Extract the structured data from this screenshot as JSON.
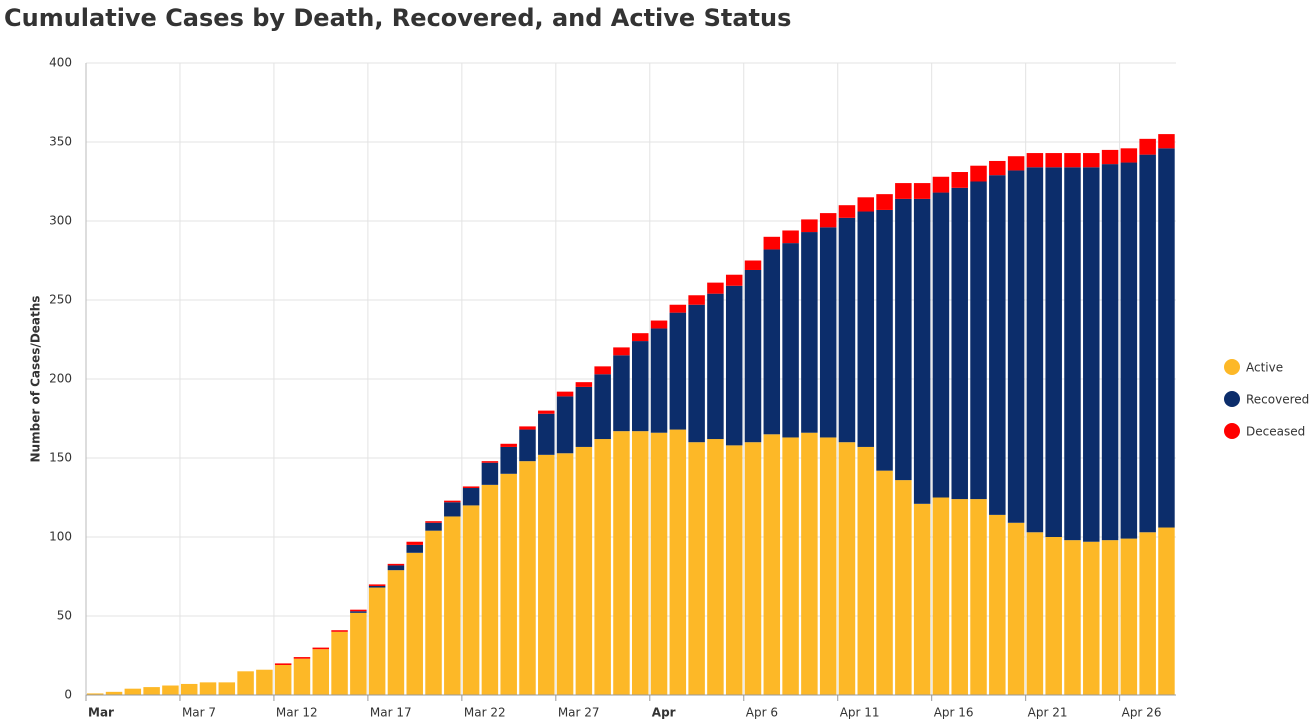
{
  "chart_data": {
    "type": "stacked-bar",
    "title": "Cumulative Cases by Death, Recovered, and Active Status",
    "ylabel": "Number of Cases/Deaths",
    "categories": [
      "Mar",
      null,
      null,
      null,
      null,
      "Mar 7",
      null,
      null,
      null,
      null,
      "Mar 12",
      null,
      null,
      null,
      null,
      "Mar 17",
      null,
      null,
      null,
      null,
      "Mar 22",
      null,
      null,
      null,
      null,
      "Mar 27",
      null,
      null,
      null,
      null,
      "Apr",
      null,
      null,
      null,
      null,
      "Apr 6",
      null,
      null,
      null,
      null,
      "Apr 11",
      null,
      null,
      null,
      null,
      "Apr 16",
      null,
      null,
      null,
      null,
      "Apr 21",
      null,
      null,
      null,
      null,
      "Apr 26",
      null,
      null
    ],
    "series": [
      {
        "name": "Active",
        "color": "#fdb827",
        "values": [
          1,
          2,
          4,
          5,
          6,
          7,
          8,
          8,
          15,
          16,
          19,
          23,
          29,
          40,
          52,
          68,
          79,
          90,
          104,
          113,
          120,
          133,
          140,
          148,
          152,
          153,
          157,
          162,
          167,
          167,
          166,
          168,
          160,
          162,
          158,
          160,
          165,
          163,
          166,
          163,
          160,
          157,
          142,
          136,
          121,
          125,
          124,
          124,
          114,
          109,
          103,
          100,
          98,
          97,
          98,
          99,
          103,
          106
        ]
      },
      {
        "name": "Recovered",
        "color": "#0c2d6b",
        "values": [
          0,
          0,
          0,
          0,
          0,
          0,
          0,
          0,
          0,
          0,
          0,
          0,
          0,
          0,
          1,
          1,
          3,
          5,
          5,
          9,
          11,
          14,
          17,
          20,
          26,
          36,
          38,
          41,
          48,
          57,
          66,
          74,
          87,
          92,
          101,
          109,
          117,
          123,
          127,
          133,
          142,
          149,
          165,
          178,
          193,
          193,
          197,
          201,
          215,
          223,
          231,
          234,
          236,
          237,
          238,
          238,
          239,
          240
        ]
      },
      {
        "name": "Deceased",
        "color": "#ff0000",
        "values": [
          0,
          0,
          0,
          0,
          0,
          0,
          0,
          0,
          0,
          0,
          1,
          1,
          1,
          1,
          1,
          1,
          1,
          2,
          1,
          1,
          1,
          1,
          2,
          2,
          2,
          3,
          3,
          5,
          5,
          5,
          5,
          5,
          6,
          7,
          7,
          6,
          8,
          8,
          8,
          9,
          8,
          9,
          10,
          10,
          10,
          10,
          10,
          10,
          9,
          9,
          9,
          9,
          9,
          9,
          9,
          9,
          10,
          9
        ]
      }
    ],
    "ylim": [
      0,
      400
    ],
    "yticks": [
      0,
      50,
      100,
      150,
      200,
      250,
      300,
      350,
      400
    ],
    "grid": true,
    "legend": "right"
  }
}
